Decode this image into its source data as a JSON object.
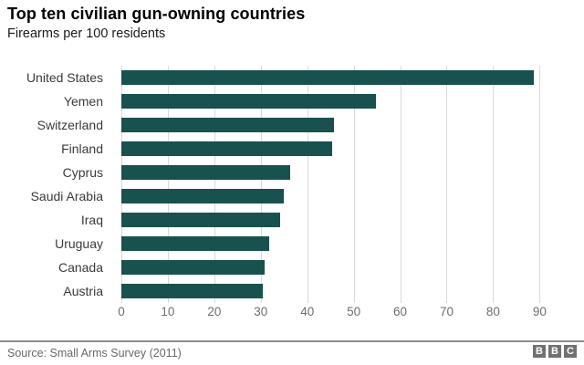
{
  "page": {
    "title": "Top ten civilian gun-owning countries",
    "subtitle": "Firearms per 100 residents",
    "source": "Source: Small Arms Survey (2011)",
    "logo_letters": [
      "B",
      "B",
      "C"
    ]
  },
  "colors": {
    "bar": "#17524f",
    "gridline": "#d9d9d9",
    "axis_text": "#6e6e6e",
    "label_text": "#3a3a3a",
    "source_text": "#686868",
    "divider": "#8c8c8c",
    "logo_box": "#717171"
  },
  "chart_data": {
    "type": "bar",
    "orientation": "horizontal",
    "title": "Top ten civilian gun-owning countries",
    "subtitle": "Firearms per 100 residents",
    "categories": [
      "United States",
      "Yemen",
      "Switzerland",
      "Finland",
      "Cyprus",
      "Saudi Arabia",
      "Iraq",
      "Uruguay",
      "Canada",
      "Austria"
    ],
    "values": [
      88.8,
      54.8,
      45.7,
      45.3,
      36.4,
      35.0,
      34.2,
      31.8,
      30.8,
      30.4
    ],
    "x_ticks": [
      0,
      10,
      20,
      30,
      40,
      50,
      60,
      70,
      80,
      90
    ],
    "xlim": [
      0,
      97
    ],
    "xlabel": "Firearms per 100 residents",
    "ylabel": "",
    "grid": true,
    "legend": false,
    "annotation_source": "Source: Small Arms Survey (2011)"
  }
}
